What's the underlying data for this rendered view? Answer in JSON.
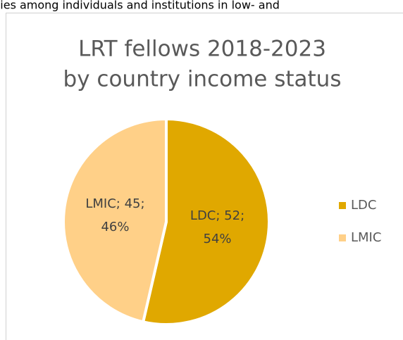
{
  "header_text": "ties among individuals and institutions in low- and",
  "chart_data": {
    "type": "pie",
    "title": "LRT fellows 2018-2023 by country income status",
    "categories": [
      "LDC",
      "LMIC"
    ],
    "values": [
      52,
      45
    ],
    "value_labels": [
      "LDC; 52; 54%",
      "LMIC; 45; 46%"
    ],
    "colors": [
      "#e0a800",
      "#ffd088"
    ],
    "legend": "right"
  }
}
